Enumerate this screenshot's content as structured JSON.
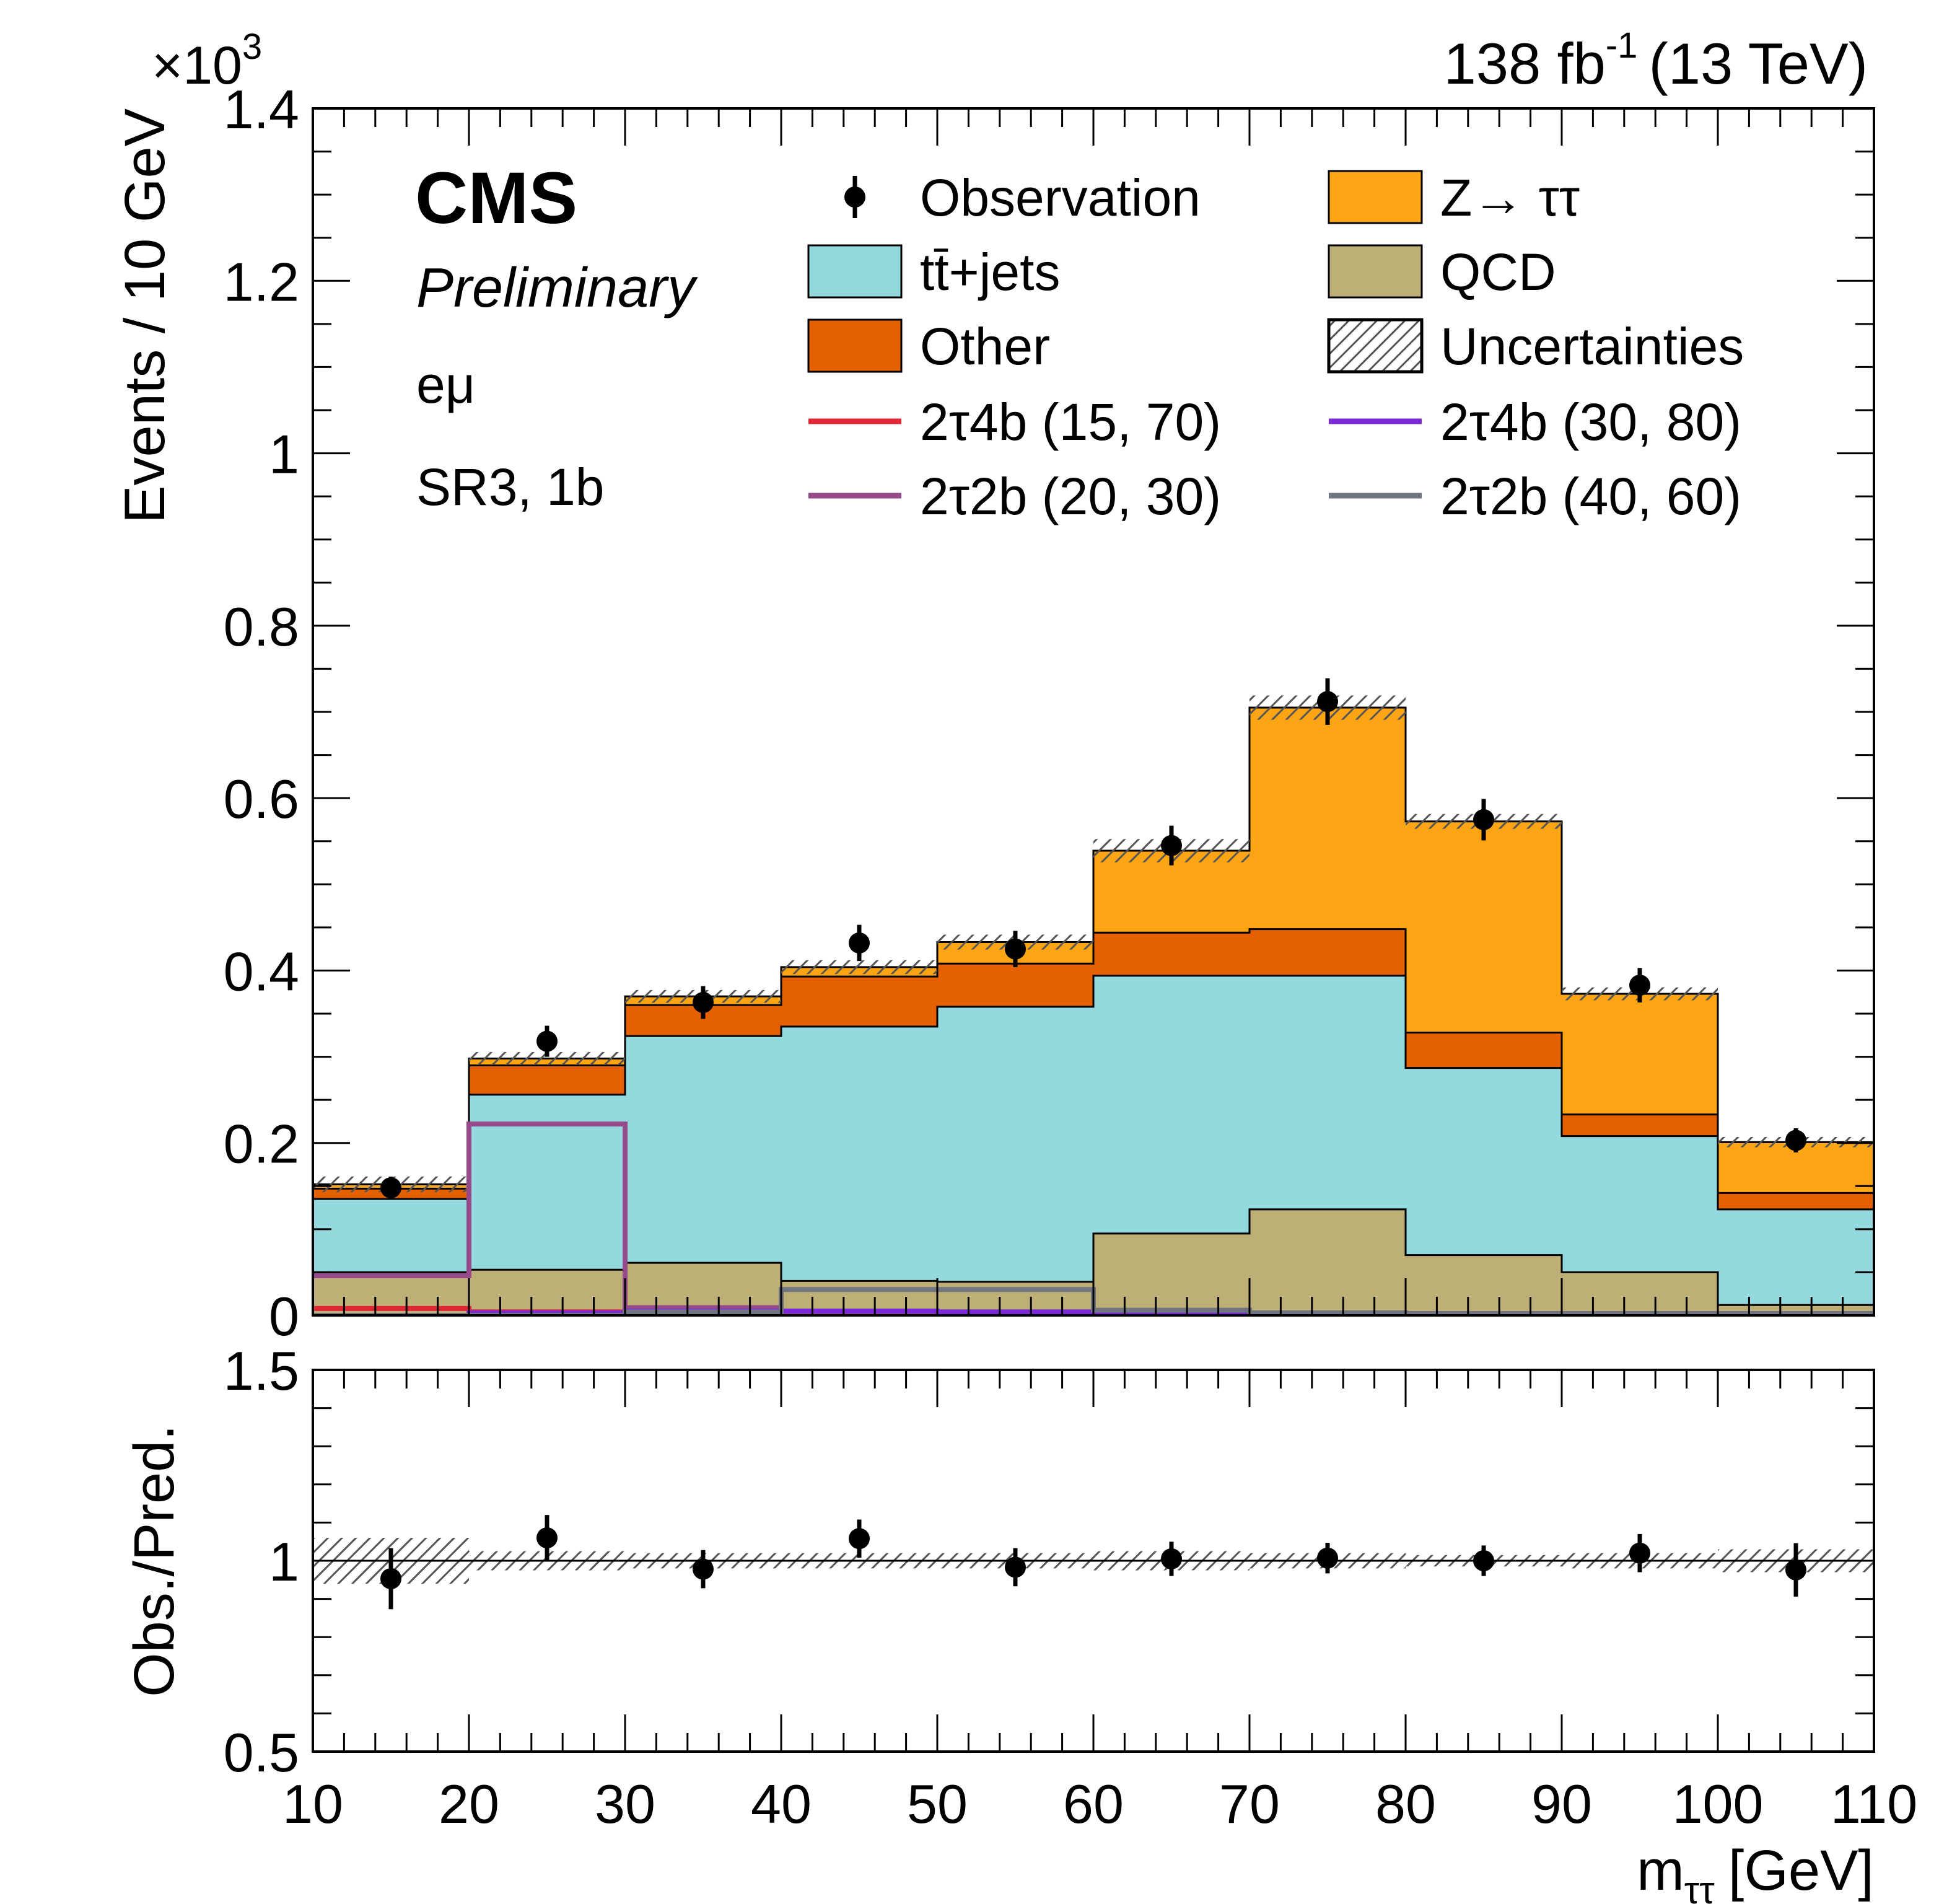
{
  "header": {
    "lumi": "138 fb",
    "lumi_exp": "-1",
    "energy": "(13 TeV)",
    "exponent_base": "×10",
    "exponent_power": "3"
  },
  "labels": {
    "cms": "CMS",
    "preliminary": "Preliminary",
    "channel": "eμ",
    "region": "SR3, 1b"
  },
  "colors": {
    "ttbar": "#94d9de",
    "other": "#e56100",
    "ztautau": "#fda515",
    "qcd": "#bdaf76",
    "sig_2t4b_15_70": "#e32636",
    "sig_2t4b_30_80": "#7b28d8",
    "sig_2t2b_20_30": "#964a8b",
    "sig_2t2b_40_60": "#717581"
  },
  "chart_data": [
    {
      "type": "bar",
      "stacked": true,
      "title": "",
      "xlabel": "m",
      "xlabel_sub": "ττ",
      "xlabel_unit": "[GeV]",
      "ylabel": "Events / 10 GeV",
      "xlim": [
        10,
        110
      ],
      "ylim": [
        0,
        1.4
      ],
      "y_scale_note": "×10^3",
      "grid": false,
      "legend_position": "top-right",
      "bin_edges": [
        10,
        20,
        30,
        40,
        50,
        60,
        70,
        80,
        90,
        100,
        110
      ],
      "x_ticks": [
        10,
        20,
        30,
        40,
        50,
        60,
        70,
        80,
        90,
        100,
        110
      ],
      "y_ticks": [
        "0",
        "0.2",
        "0.4",
        "0.6",
        "0.8",
        "1",
        "1.2",
        "1.4"
      ],
      "y_tick_values": [
        0,
        0.2,
        0.4,
        0.6,
        0.8,
        1.0,
        1.2,
        1.4
      ],
      "stack": [
        {
          "name": "QCD",
          "color_key": "qcd",
          "values": [
            0.05,
            0.053,
            0.061,
            0.04,
            0.039,
            0.095,
            0.123,
            0.07,
            0.05,
            0.012
          ]
        },
        {
          "name": "tt̄+jets",
          "color_key": "ttbar",
          "values": [
            0.085,
            0.203,
            0.263,
            0.295,
            0.319,
            0.299,
            0.271,
            0.217,
            0.158,
            0.111
          ]
        },
        {
          "name": "Other",
          "color_key": "other",
          "values": [
            0.012,
            0.034,
            0.036,
            0.058,
            0.05,
            0.05,
            0.054,
            0.041,
            0.025,
            0.019
          ]
        },
        {
          "name": "Z→ ττ",
          "color_key": "ztautau",
          "values": [
            0.005,
            0.008,
            0.01,
            0.011,
            0.025,
            0.095,
            0.257,
            0.245,
            0.14,
            0.059
          ]
        }
      ],
      "observation": {
        "name": "Observation",
        "x": [
          15,
          25,
          35,
          45,
          55,
          65,
          75,
          85,
          95,
          105
        ],
        "values": [
          0.148,
          0.318,
          0.363,
          0.432,
          0.425,
          0.545,
          0.712,
          0.575,
          0.383,
          0.203
        ],
        "errors": [
          0.013,
          0.018,
          0.019,
          0.021,
          0.021,
          0.023,
          0.027,
          0.024,
          0.02,
          0.014
        ]
      },
      "uncertainty": {
        "name": "Uncertainties",
        "rel_errors": [
          0.06,
          0.025,
          0.02,
          0.02,
          0.02,
          0.025,
          0.02,
          0.015,
          0.02,
          0.03
        ]
      },
      "signals": [
        {
          "name": "2τ4b (15, 70)",
          "color_key": "sig_2t4b_15_70",
          "values": [
            0.008,
            0.004,
            0.002,
            0.001,
            0.001,
            0.001,
            0.001,
            0.001,
            0.001,
            0.001
          ]
        },
        {
          "name": "2τ2b (20, 30)",
          "color_key": "sig_2t2b_20_30",
          "values": [
            0.046,
            0.222,
            0.009,
            0.004,
            0.003,
            0.003,
            0.002,
            0.002,
            0.002,
            0.002
          ]
        },
        {
          "name": "2τ4b (30, 80)",
          "color_key": "sig_2t4b_30_80",
          "values": [
            0.0,
            0.003,
            0.005,
            0.005,
            0.004,
            0.003,
            0.002,
            0.002,
            0.002,
            0.002
          ]
        },
        {
          "name": "2τ2b (40, 60)",
          "color_key": "sig_2t2b_40_60",
          "values": [
            0.0,
            0.0,
            0.004,
            0.03,
            0.03,
            0.006,
            0.003,
            0.002,
            0.002,
            0.002
          ]
        }
      ],
      "legend": [
        {
          "label": "Observation",
          "kind": "marker"
        },
        {
          "label": "Z→ ττ",
          "kind": "fill",
          "color_key": "ztautau"
        },
        {
          "label": "tt̄+jets",
          "kind": "fill",
          "color_key": "ttbar"
        },
        {
          "label": "QCD",
          "kind": "fill",
          "color_key": "qcd"
        },
        {
          "label": "Other",
          "kind": "fill",
          "color_key": "other"
        },
        {
          "label": "Uncertainties",
          "kind": "hatch"
        },
        {
          "label": "2τ4b (15, 70)",
          "kind": "line",
          "color_key": "sig_2t4b_15_70"
        },
        {
          "label": "2τ4b (30, 80)",
          "kind": "line",
          "color_key": "sig_2t4b_30_80"
        },
        {
          "label": "2τ2b (20, 30)",
          "kind": "line",
          "color_key": "sig_2t2b_20_30"
        },
        {
          "label": "2τ2b (40, 60)",
          "kind": "line",
          "color_key": "sig_2t2b_40_60"
        }
      ]
    },
    {
      "type": "scatter",
      "title": "",
      "ylabel": "Obs./Pred.",
      "xlim": [
        10,
        110
      ],
      "ylim": [
        0.5,
        1.5
      ],
      "y_ticks": [
        "0.5",
        "1",
        "1.5"
      ],
      "y_tick_values": [
        0.5,
        1.0,
        1.5
      ],
      "x": [
        15,
        25,
        35,
        45,
        55,
        65,
        75,
        85,
        95,
        105
      ],
      "values": [
        0.953,
        1.06,
        0.978,
        1.058,
        0.983,
        1.005,
        1.007,
        1.0,
        1.02,
        0.976
      ],
      "errors": [
        0.08,
        0.06,
        0.05,
        0.05,
        0.05,
        0.045,
        0.04,
        0.04,
        0.05,
        0.07
      ],
      "band_rel_errors": [
        0.06,
        0.025,
        0.02,
        0.02,
        0.02,
        0.025,
        0.02,
        0.015,
        0.02,
        0.03
      ],
      "reference_line": 1.0
    }
  ]
}
